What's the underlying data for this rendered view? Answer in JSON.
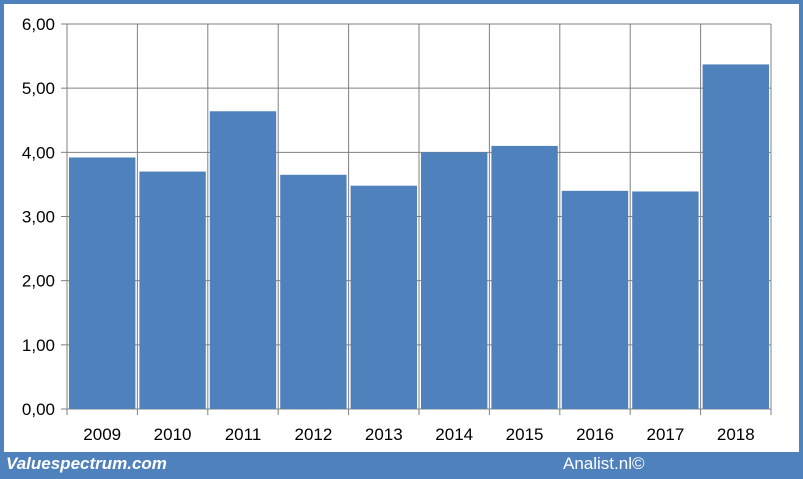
{
  "chart_data": {
    "type": "bar",
    "categories": [
      "2009",
      "2010",
      "2011",
      "2012",
      "2013",
      "2014",
      "2015",
      "2016",
      "2017",
      "2018"
    ],
    "values": [
      3.92,
      3.7,
      4.64,
      3.65,
      3.48,
      4.0,
      4.1,
      3.4,
      3.39,
      5.37
    ],
    "yticks": [
      "0,00",
      "1,00",
      "2,00",
      "3,00",
      "4,00",
      "5,00",
      "6,00"
    ],
    "ylim": [
      0,
      6
    ],
    "grid": true,
    "bar_color": "#4f81bd",
    "title": "",
    "xlabel": "",
    "ylabel": ""
  },
  "footer": {
    "left": "Valuespectrum.com",
    "right": "Analist.nl©"
  },
  "colors": {
    "frame": "#4f81bd",
    "background": "#ffffff",
    "grid": "#808080"
  }
}
